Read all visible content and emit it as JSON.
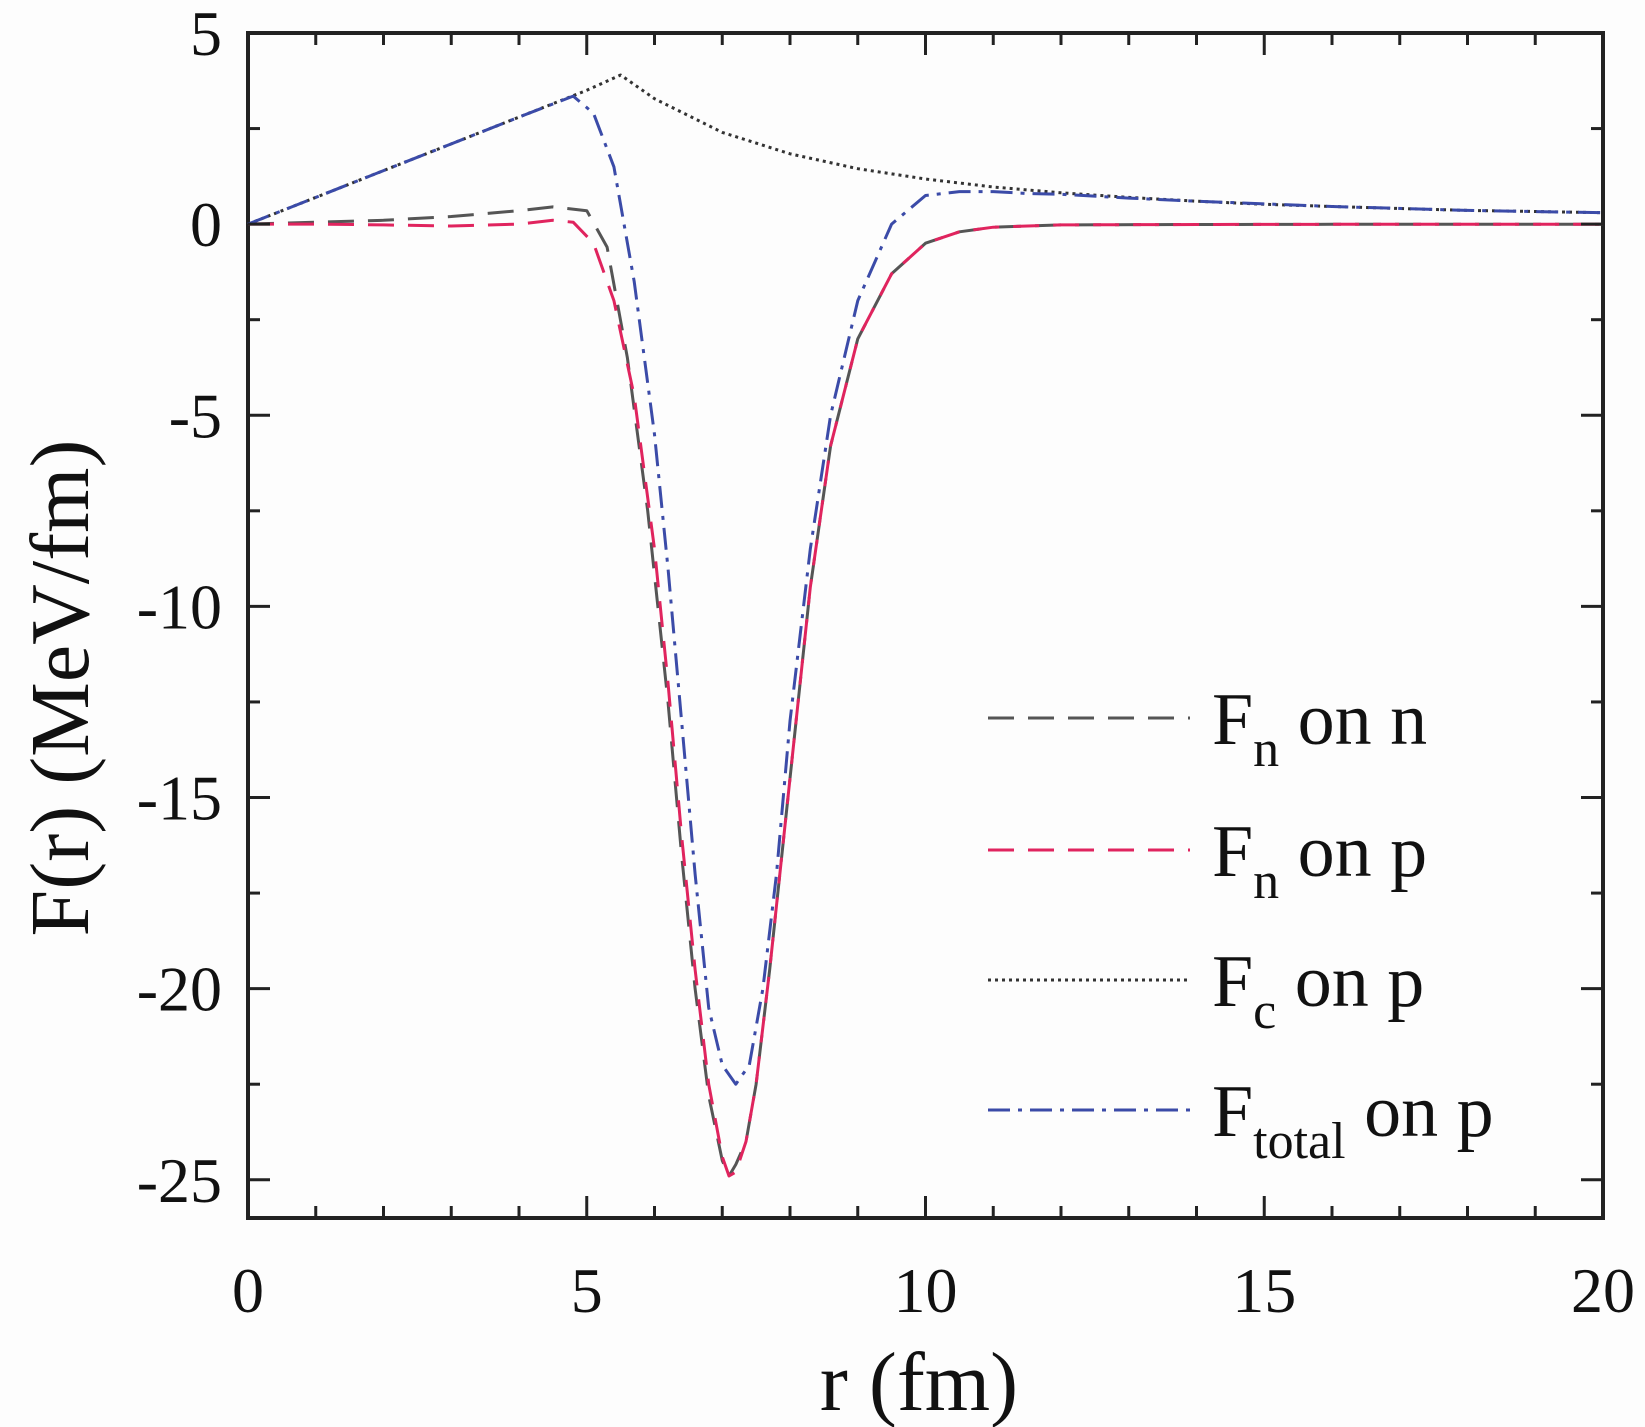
{
  "chart_data": {
    "type": "line",
    "xlabel": "r (fm)",
    "ylabel": "F(r) (MeV/fm)",
    "xlim": [
      0,
      20
    ],
    "ylim": [
      -26,
      5
    ],
    "xticks": [
      0,
      5,
      10,
      15,
      20
    ],
    "yticks": [
      5,
      0,
      -5,
      -10,
      -15,
      -20,
      -25
    ],
    "xtick_labels": [
      "0",
      "5",
      "10",
      "15",
      "20"
    ],
    "ytick_labels": [
      "5",
      "0",
      "-5",
      "-10",
      "-15",
      "-20",
      "-25"
    ],
    "grid": false,
    "legend_position": "bottom-right",
    "series": [
      {
        "name": "F_n on n",
        "label_main": "F",
        "label_sub": "n",
        "label_rest": " on n",
        "color": "#555555",
        "dash": "26 14",
        "x": [
          0,
          1,
          2,
          3,
          4,
          4.5,
          5,
          5.3,
          5.6,
          5.9,
          6.2,
          6.4,
          6.6,
          6.8,
          7.0,
          7.1,
          7.2,
          7.35,
          7.5,
          7.7,
          8.0,
          8.3,
          8.6,
          9.0,
          9.5,
          10.0,
          10.5,
          11,
          12,
          14,
          16,
          18,
          20
        ],
        "y": [
          0,
          0.05,
          0.1,
          0.2,
          0.35,
          0.45,
          0.35,
          -0.6,
          -3.5,
          -7.5,
          -12.5,
          -16.5,
          -20.0,
          -22.8,
          -24.5,
          -24.9,
          -24.6,
          -24.0,
          -22.5,
          -19.5,
          -14.5,
          -9.5,
          -5.8,
          -3.0,
          -1.3,
          -0.5,
          -0.2,
          -0.08,
          -0.02,
          -0.01,
          -0.005,
          -0.002,
          -0.001
        ]
      },
      {
        "name": "F_n on p",
        "label_main": "F",
        "label_sub": "n",
        "label_rest": " on p",
        "color": "#e0245e",
        "dash": "26 14",
        "x": [
          0,
          1,
          2,
          3,
          4,
          4.5,
          4.8,
          5.1,
          5.4,
          5.7,
          6.0,
          6.2,
          6.4,
          6.6,
          6.8,
          7.0,
          7.1,
          7.2,
          7.35,
          7.5,
          7.7,
          8.0,
          8.3,
          8.6,
          9.0,
          9.5,
          10.0,
          10.5,
          11,
          12,
          14,
          16,
          18,
          20
        ],
        "y": [
          0,
          0,
          -0.02,
          -0.05,
          0,
          0.1,
          0.05,
          -0.5,
          -2.0,
          -4.5,
          -8.5,
          -12.0,
          -16.0,
          -19.5,
          -22.5,
          -24.4,
          -24.9,
          -24.8,
          -24.0,
          -22.5,
          -19.5,
          -14.5,
          -9.5,
          -5.8,
          -3.0,
          -1.3,
          -0.5,
          -0.2,
          -0.08,
          -0.02,
          -0.01,
          -0.005,
          -0.002,
          -0.001
        ]
      },
      {
        "name": "F_c on p",
        "label_main": "F",
        "label_sub": "c",
        "label_rest": " on p",
        "color": "#333333",
        "dash": "3 4",
        "x": [
          0,
          1,
          2,
          3,
          4,
          5,
          5.5,
          6,
          7,
          8,
          9,
          10,
          11,
          12,
          13,
          14,
          15,
          16,
          17,
          18,
          19,
          20
        ],
        "y": [
          0,
          0.7,
          1.4,
          2.1,
          2.8,
          3.5,
          3.9,
          3.28,
          2.4,
          1.84,
          1.45,
          1.18,
          0.97,
          0.82,
          0.7,
          0.6,
          0.52,
          0.46,
          0.41,
          0.36,
          0.33,
          0.3
        ]
      },
      {
        "name": "F_total on p",
        "label_main": "F",
        "label_sub": "total",
        "label_rest": " on p",
        "color": "#3b4ba8",
        "dash": "22 8 4 8",
        "x": [
          0,
          1,
          2,
          3,
          4,
          4.8,
          5.1,
          5.4,
          5.7,
          6.0,
          6.2,
          6.4,
          6.6,
          6.8,
          7.0,
          7.2,
          7.4,
          7.6,
          7.8,
          8.0,
          8.3,
          8.6,
          9.0,
          9.5,
          10.0,
          10.5,
          11.0,
          11.5,
          12,
          13,
          14,
          16,
          18,
          20
        ],
        "y": [
          0,
          0.7,
          1.4,
          2.1,
          2.8,
          3.35,
          2.9,
          1.5,
          -1.5,
          -5.5,
          -9.0,
          -13.0,
          -17.0,
          -20.5,
          -22.0,
          -22.5,
          -22.0,
          -20.0,
          -17.0,
          -13.0,
          -8.5,
          -5.0,
          -2.0,
          0.0,
          0.75,
          0.85,
          0.85,
          0.8,
          0.78,
          0.68,
          0.6,
          0.46,
          0.36,
          0.3
        ]
      }
    ]
  }
}
